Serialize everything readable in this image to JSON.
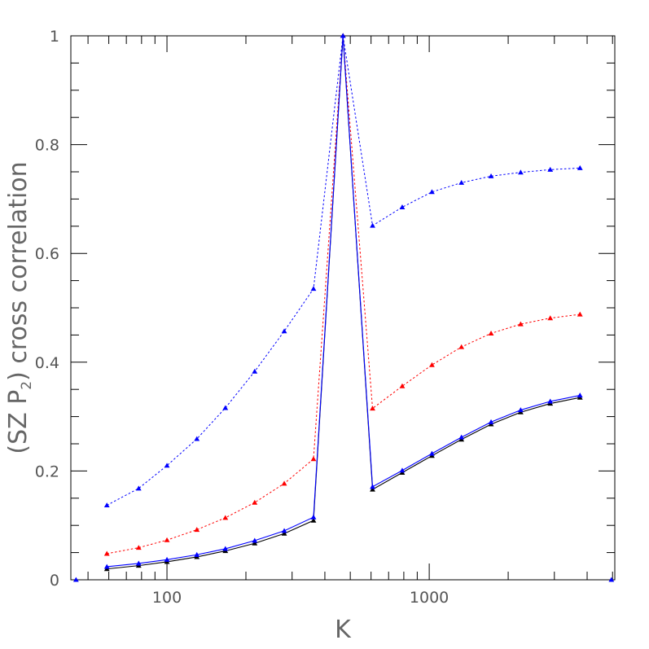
{
  "chart_data": {
    "type": "line",
    "xscale": "log",
    "xlim": [
      43,
      5100
    ],
    "ylim": [
      0,
      1
    ],
    "xlabel": "K",
    "ylabel": "(SZ P₂) cross correlation",
    "ylabel_parts": {
      "main": "(SZ P",
      "sub": "2",
      "end": ") cross correlation"
    },
    "x_ticks": [
      100,
      1000
    ],
    "x_tick_labels": [
      "100",
      "1000"
    ],
    "y_ticks": [
      0,
      0.2,
      0.4,
      0.6,
      0.8,
      1
    ],
    "y_tick_labels": [
      "0",
      "0.2",
      "0.4",
      "0.6",
      "0.8",
      "1"
    ],
    "grid": false,
    "x": [
      59,
      78,
      100,
      130,
      167,
      216,
      280,
      362,
      469,
      608,
      789,
      1024,
      1327,
      1721,
      2232,
      2894,
      3757
    ],
    "series": [
      {
        "color": "#0000ff",
        "style": "dotted",
        "marker": "triangle",
        "values": [
          0.137,
          0.168,
          0.21,
          0.259,
          0.316,
          0.383,
          0.457,
          0.535,
          1.0,
          0.651,
          0.685,
          0.713,
          0.73,
          0.742,
          0.749,
          0.754,
          0.757
        ]
      },
      {
        "color": "#ff0000",
        "style": "dotted",
        "marker": "triangle",
        "values": [
          0.048,
          0.059,
          0.073,
          0.092,
          0.114,
          0.142,
          0.177,
          0.222,
          1.0,
          0.315,
          0.356,
          0.395,
          0.428,
          0.453,
          0.47,
          0.481,
          0.488
        ]
      },
      {
        "color": "#000000",
        "style": "solid",
        "marker": "triangle",
        "values": [
          0.02,
          0.026,
          0.033,
          0.042,
          0.053,
          0.067,
          0.085,
          0.109,
          1.0,
          0.166,
          0.197,
          0.228,
          0.258,
          0.286,
          0.308,
          0.324,
          0.335
        ]
      },
      {
        "color": "#0000ff",
        "style": "solid",
        "marker": "triangle",
        "values": [
          0.024,
          0.03,
          0.037,
          0.046,
          0.057,
          0.072,
          0.09,
          0.115,
          1.0,
          0.171,
          0.201,
          0.232,
          0.262,
          0.29,
          0.312,
          0.328,
          0.339
        ]
      }
    ],
    "extra_markers": [
      {
        "x": 45,
        "y": 0,
        "color": "#0000ff"
      },
      {
        "x": 4950,
        "y": 0,
        "color": "#0000ff"
      }
    ]
  }
}
